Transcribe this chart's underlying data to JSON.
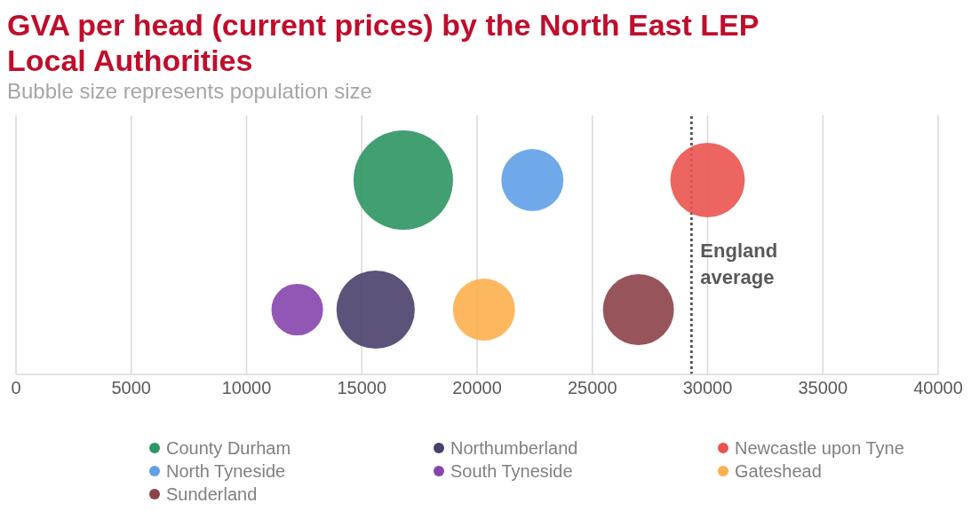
{
  "chart_data": {
    "type": "bubble",
    "title": "GVA per head (current prices) by the North East LEP Local Authorities",
    "subtitle": "Bubble size represents population size",
    "orientation": "horizontal",
    "categories": [
      null,
      null
    ],
    "series": [
      {
        "name": "County Durham",
        "color": "#2e9563",
        "values": [
          16800,
          null
        ],
        "sizes": [
          1,
          null
        ]
      },
      {
        "name": "Northumberland",
        "color": "#4b3f6b",
        "values": [
          null,
          15600
        ],
        "sizes": [
          null,
          0.62
        ]
      },
      {
        "name": "Newcastle upon Tyne",
        "color": "#ea5450",
        "values": [
          30000,
          null
        ],
        "sizes": [
          0.56,
          null
        ]
      },
      {
        "name": "North Tyneside",
        "color": "#61a0e8",
        "values": [
          22400,
          null
        ],
        "sizes": [
          0.39,
          null
        ]
      },
      {
        "name": "South Tyneside",
        "color": "#8645ad",
        "values": [
          null,
          12200
        ],
        "sizes": [
          null,
          0.27
        ]
      },
      {
        "name": "Gateshead",
        "color": "#fdb04e",
        "values": [
          null,
          20300
        ],
        "sizes": [
          null,
          0.39
        ]
      },
      {
        "name": "Sunderland",
        "color": "#8c4249",
        "values": [
          null,
          27000
        ],
        "sizes": [
          null,
          0.51
        ]
      }
    ],
    "xlim": [
      0,
      40000
    ],
    "xticks": [
      0,
      5000,
      10000,
      15000,
      20000,
      25000,
      30000,
      35000,
      40000
    ],
    "ref_lines": [
      {
        "axis": "x",
        "value": 29300,
        "label": "England average",
        "color": "#595959",
        "line_style": "dotted"
      }
    ],
    "grid": "x",
    "legend": "bottom",
    "marker": "circle"
  }
}
